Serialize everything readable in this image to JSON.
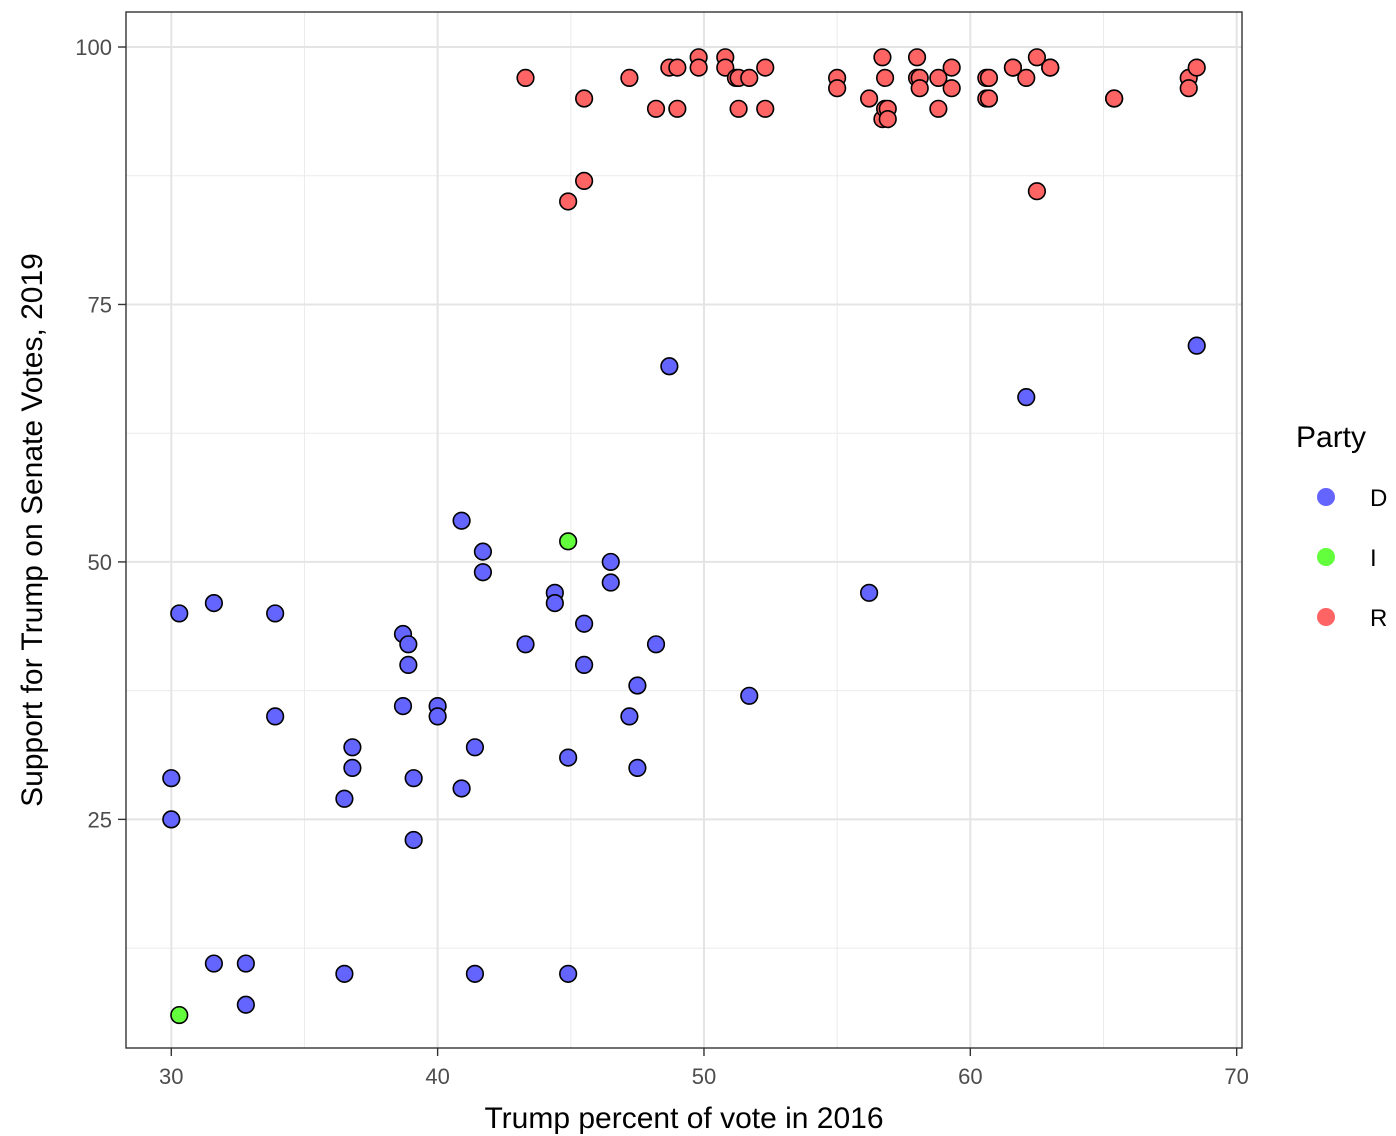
{
  "chart_data": {
    "type": "scatter",
    "title": "",
    "xlabel": "Trump percent of vote in 2016",
    "ylabel": "Support for Trump on Senate Votes, 2019",
    "xlim": [
      28.3,
      70.2
    ],
    "ylim": [
      2.8,
      103.4
    ],
    "x_ticks": [
      30,
      40,
      50,
      60,
      70
    ],
    "y_ticks": [
      25,
      50,
      75,
      100
    ],
    "x_tick_labels": [
      "30",
      "40",
      "50",
      "60",
      "70"
    ],
    "y_tick_labels": [
      "25",
      "50",
      "75",
      "100"
    ],
    "grid": true,
    "legend": {
      "title": "Party",
      "position": "right"
    },
    "series": [
      {
        "name": "D",
        "color": "#6464ff",
        "points": [
          [
            30.3,
            45
          ],
          [
            31.6,
            46
          ],
          [
            33.9,
            45
          ],
          [
            33.9,
            35
          ],
          [
            30.0,
            29
          ],
          [
            30.0,
            25
          ],
          [
            31.6,
            11
          ],
          [
            32.8,
            11
          ],
          [
            32.8,
            7
          ],
          [
            36.5,
            10
          ],
          [
            36.8,
            32
          ],
          [
            36.8,
            30
          ],
          [
            36.5,
            27
          ],
          [
            38.7,
            43
          ],
          [
            38.9,
            42
          ],
          [
            38.9,
            40
          ],
          [
            38.7,
            36
          ],
          [
            40.0,
            36
          ],
          [
            40.0,
            35
          ],
          [
            39.1,
            29
          ],
          [
            39.1,
            23
          ],
          [
            40.9,
            54
          ],
          [
            41.7,
            51
          ],
          [
            41.7,
            49
          ],
          [
            41.4,
            32
          ],
          [
            40.9,
            28
          ],
          [
            41.4,
            10
          ],
          [
            43.3,
            42
          ],
          [
            44.4,
            47
          ],
          [
            44.4,
            46
          ],
          [
            45.5,
            44
          ],
          [
            45.5,
            40
          ],
          [
            44.9,
            31
          ],
          [
            44.9,
            10
          ],
          [
            46.5,
            50
          ],
          [
            46.5,
            48
          ],
          [
            47.5,
            38
          ],
          [
            47.2,
            35
          ],
          [
            47.5,
            30
          ],
          [
            48.2,
            42
          ],
          [
            48.7,
            69
          ],
          [
            51.7,
            37
          ],
          [
            56.2,
            47
          ],
          [
            62.1,
            66
          ],
          [
            68.5,
            71
          ]
        ]
      },
      {
        "name": "I",
        "color": "#64ff3c",
        "points": [
          [
            44.9,
            52
          ],
          [
            30.3,
            6
          ]
        ]
      },
      {
        "name": "R",
        "color": "#ff6464",
        "points": [
          [
            43.3,
            97
          ],
          [
            44.9,
            85
          ],
          [
            45.5,
            95
          ],
          [
            45.5,
            87
          ],
          [
            47.2,
            97
          ],
          [
            48.2,
            94
          ],
          [
            48.7,
            98
          ],
          [
            49.0,
            98
          ],
          [
            49.0,
            94
          ],
          [
            49.8,
            99
          ],
          [
            49.8,
            98
          ],
          [
            50.8,
            99
          ],
          [
            50.8,
            98
          ],
          [
            51.2,
            97
          ],
          [
            51.3,
            97
          ],
          [
            51.3,
            94
          ],
          [
            51.7,
            97
          ],
          [
            52.3,
            98
          ],
          [
            52.3,
            94
          ],
          [
            55.0,
            97
          ],
          [
            55.0,
            96
          ],
          [
            56.2,
            95
          ],
          [
            56.7,
            99
          ],
          [
            56.8,
            97
          ],
          [
            56.7,
            93
          ],
          [
            56.8,
            94
          ],
          [
            56.9,
            94
          ],
          [
            56.9,
            93
          ],
          [
            58.0,
            99
          ],
          [
            58.0,
            97
          ],
          [
            58.1,
            97
          ],
          [
            58.1,
            96
          ],
          [
            58.8,
            97
          ],
          [
            58.8,
            94
          ],
          [
            59.3,
            98
          ],
          [
            59.3,
            96
          ],
          [
            60.6,
            97
          ],
          [
            60.7,
            97
          ],
          [
            60.6,
            95
          ],
          [
            60.7,
            95
          ],
          [
            61.6,
            98
          ],
          [
            61.6,
            98
          ],
          [
            62.1,
            97
          ],
          [
            62.5,
            99
          ],
          [
            62.5,
            86
          ],
          [
            63.0,
            98
          ],
          [
            63.0,
            98
          ],
          [
            65.4,
            95
          ],
          [
            65.4,
            95
          ],
          [
            68.2,
            97
          ],
          [
            68.2,
            96
          ],
          [
            68.5,
            98
          ]
        ]
      }
    ]
  }
}
